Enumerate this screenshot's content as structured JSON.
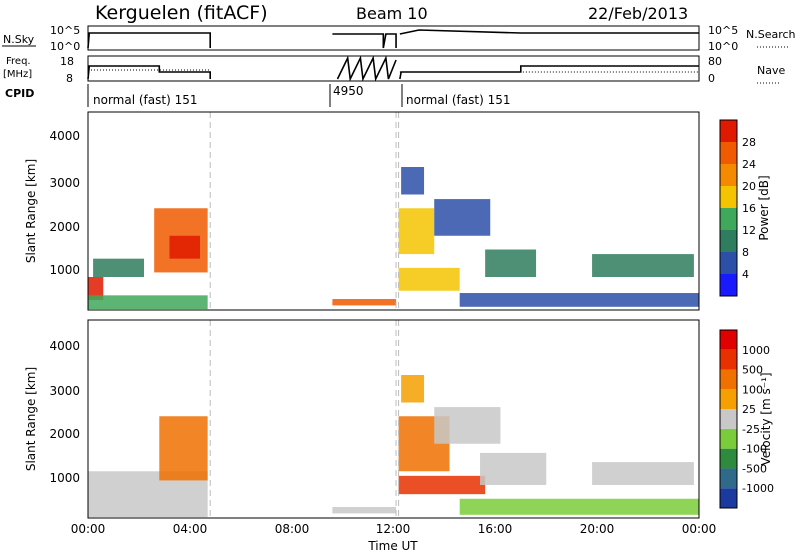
{
  "header": {
    "station": "Kerguelen (fitACF)",
    "beam": "Beam 10",
    "date": "22/Feb/2013"
  },
  "aux_panels": {
    "nsky_label": "N.Sky",
    "nsky_ticks": [
      "10^5",
      "10^0"
    ],
    "nsearch_label": "N.Search",
    "nsearch_ticks": [
      "10^5",
      "10^0"
    ],
    "freq_label_line1": "Freq.",
    "freq_label_line2": "[MHz]",
    "freq_ticks": [
      "18",
      "8"
    ],
    "nave_label": "Nave",
    "nave_ticks": [
      "80",
      "0"
    ],
    "cpid_label": "CPID",
    "cpid_segments": [
      {
        "label": "normal (fast) 151",
        "start_h": 0,
        "end_h": 4.8
      },
      {
        "label": "4950",
        "start_h": 9.6,
        "end_h": 12.2
      },
      {
        "label": "normal (fast) 151",
        "start_h": 12.2,
        "end_h": 24
      }
    ]
  },
  "panels": {
    "ylabel": "Slant Range [km]",
    "xlabel": "Time UT",
    "x_ticks": [
      "00:00",
      "04:00",
      "08:00",
      "12:00",
      "16:00",
      "20:00",
      "00:00"
    ],
    "y_ticks": [
      "1000",
      "2000",
      "3000",
      "4000"
    ],
    "power_cbar_label": "Power [dB]",
    "power_cbar_ticks": [
      "4",
      "8",
      "12",
      "16",
      "20",
      "24",
      "28"
    ],
    "velocity_cbar_label": "Velocity [m s⁻¹]",
    "velocity_cbar_ticks": [
      "1000",
      "500",
      "100",
      "25",
      "-25",
      "-100",
      "-500",
      "-1000"
    ]
  },
  "colors": {
    "power_scale": [
      "#1a1aff",
      "#2c4fa8",
      "#2e7d5e",
      "#3fa85a",
      "#f5c400",
      "#f58a00",
      "#f05a00",
      "#e01a00"
    ],
    "velocity_scale": [
      "#1a3aa0",
      "#2f6a8a",
      "#2e8a3c",
      "#7acc3a",
      "#c8c8c8",
      "#f5a000",
      "#f07000",
      "#e83000",
      "#e00000"
    ],
    "dashed_line": "#bbbbbb"
  },
  "chart_data": {
    "type": "heatmap",
    "x_range_hours": [
      0,
      24
    ],
    "y_range_km": [
      180,
      4500
    ],
    "data_gaps_hours": [
      [
        4.8,
        9.6
      ],
      [
        12.1,
        12.25
      ]
    ],
    "power_scale_db": [
      0,
      32
    ],
    "velocity_scale_ms": [
      -1000,
      1000
    ],
    "power_patches": [
      {
        "t0": 0.0,
        "t1": 0.6,
        "r0": 400,
        "r1": 900,
        "level": 7
      },
      {
        "t0": 0.0,
        "t1": 4.7,
        "r0": 200,
        "r1": 500,
        "level": 3
      },
      {
        "t0": 0.2,
        "t1": 2.2,
        "r0": 900,
        "r1": 1300,
        "level": 2
      },
      {
        "t0": 2.6,
        "t1": 4.7,
        "r0": 1000,
        "r1": 2400,
        "level": 6
      },
      {
        "t0": 3.2,
        "t1": 4.4,
        "r0": 1300,
        "r1": 1800,
        "level": 7
      },
      {
        "t0": 9.6,
        "t1": 12.1,
        "r0": 280,
        "r1": 420,
        "level": 6
      },
      {
        "t0": 12.2,
        "t1": 13.6,
        "r0": 1400,
        "r1": 2400,
        "level": 4
      },
      {
        "t0": 12.2,
        "t1": 14.6,
        "r0": 600,
        "r1": 1100,
        "level": 4
      },
      {
        "t0": 13.6,
        "t1": 15.8,
        "r0": 1800,
        "r1": 2600,
        "level": 1
      },
      {
        "t0": 14.6,
        "t1": 24.0,
        "r0": 250,
        "r1": 550,
        "level": 1
      },
      {
        "t0": 15.6,
        "t1": 17.6,
        "r0": 900,
        "r1": 1500,
        "level": 2
      },
      {
        "t0": 19.8,
        "t1": 23.8,
        "r0": 900,
        "r1": 1400,
        "level": 2
      },
      {
        "t0": 12.3,
        "t1": 13.2,
        "r0": 2700,
        "r1": 3300,
        "level": 1
      }
    ],
    "velocity_patches": [
      {
        "t0": 0.0,
        "t1": 4.7,
        "r0": 200,
        "r1": 1200,
        "level": 4
      },
      {
        "t0": 2.8,
        "t1": 4.7,
        "r0": 1000,
        "r1": 2400,
        "level": 6
      },
      {
        "t0": 9.6,
        "t1": 12.1,
        "r0": 280,
        "r1": 420,
        "level": 4
      },
      {
        "t0": 12.2,
        "t1": 14.2,
        "r0": 1200,
        "r1": 2400,
        "level": 6
      },
      {
        "t0": 12.2,
        "t1": 15.6,
        "r0": 700,
        "r1": 1100,
        "level": 7
      },
      {
        "t0": 13.6,
        "t1": 16.2,
        "r0": 1800,
        "r1": 2600,
        "level": 4
      },
      {
        "t0": 14.6,
        "t1": 24.0,
        "r0": 250,
        "r1": 600,
        "level": 3
      },
      {
        "t0": 15.4,
        "t1": 18.0,
        "r0": 900,
        "r1": 1600,
        "level": 4
      },
      {
        "t0": 19.8,
        "t1": 23.8,
        "r0": 900,
        "r1": 1400,
        "level": 4
      },
      {
        "t0": 12.3,
        "t1": 13.2,
        "r0": 2700,
        "r1": 3300,
        "level": 5
      }
    ]
  }
}
